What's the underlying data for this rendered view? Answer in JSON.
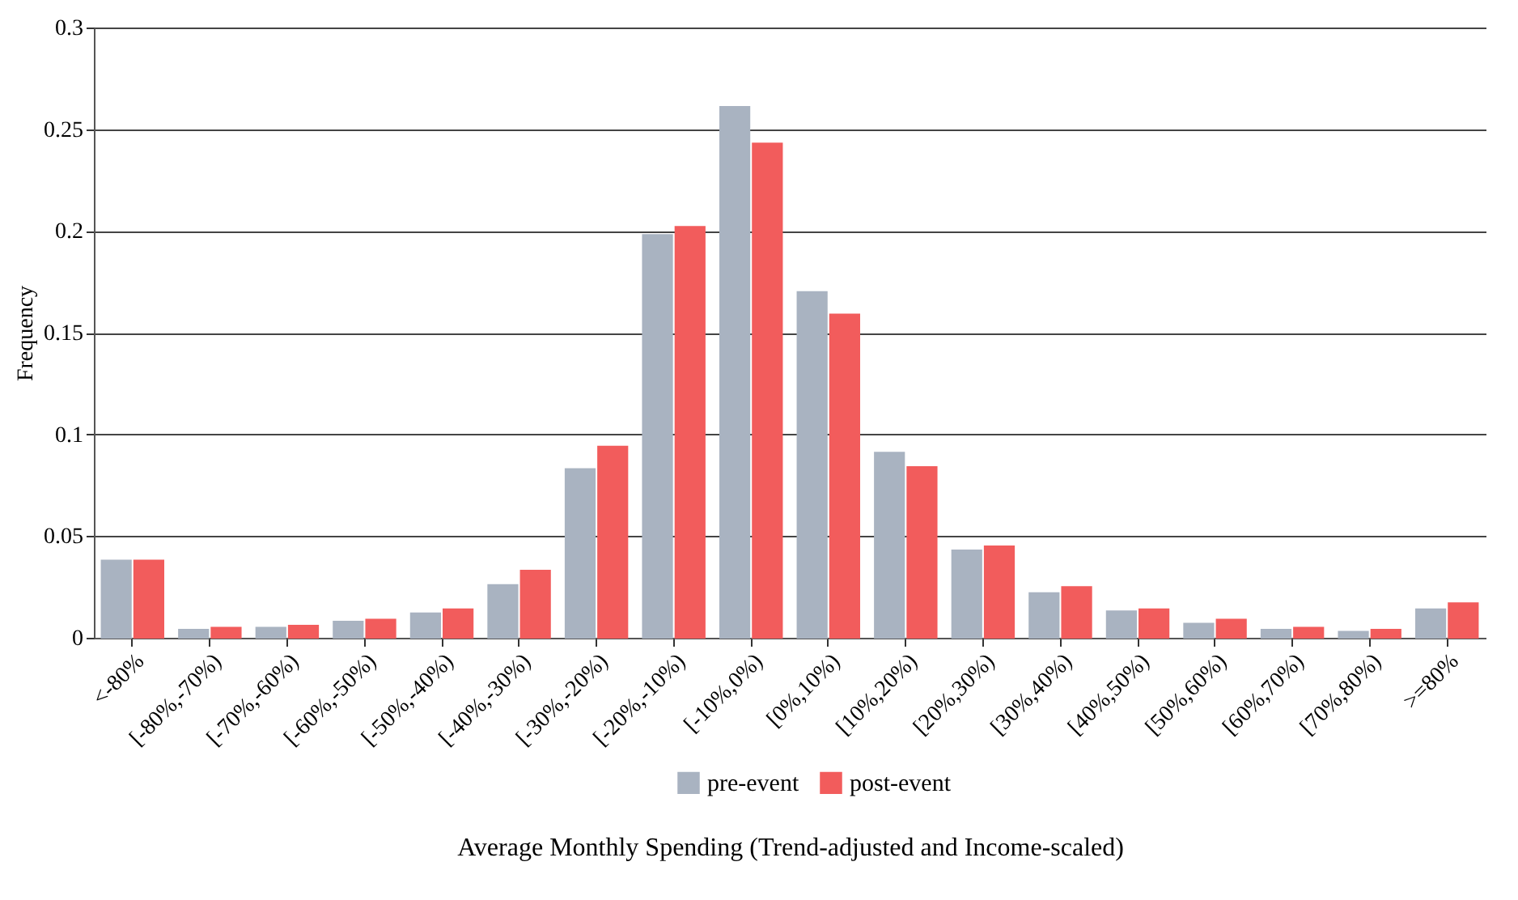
{
  "chart_data": {
    "type": "bar",
    "xlabel": "Average Monthly Spending (Trend-adjusted and Income-scaled)",
    "ylabel": "Frequency",
    "categories": [
      "<-80%",
      "[-80%,-70%)",
      "[-70%,-60%)",
      "[-60%,-50%)",
      "[-50%,-40%)",
      "[-40%,-30%)",
      "[-30%,-20%)",
      "[-20%,-10%)",
      "[-10%,0%)",
      "[0%,10%)",
      "[10%,20%)",
      "[20%,30%)",
      "[30%,40%)",
      "[40%,50%)",
      "[50%,60%)",
      "[60%,70%)",
      "[70%,80%)",
      ">=80%"
    ],
    "series": [
      {
        "name": "pre-event",
        "color": "#a9b3c1",
        "values": [
          0.038,
          0.004,
          0.005,
          0.008,
          0.012,
          0.026,
          0.083,
          0.198,
          0.261,
          0.17,
          0.091,
          0.043,
          0.022,
          0.013,
          0.007,
          0.004,
          0.003,
          0.014
        ]
      },
      {
        "name": "post-event",
        "color": "#f25c5c",
        "values": [
          0.038,
          0.005,
          0.006,
          0.009,
          0.014,
          0.033,
          0.094,
          0.202,
          0.243,
          0.159,
          0.084,
          0.045,
          0.025,
          0.014,
          0.009,
          0.005,
          0.004,
          0.017
        ]
      }
    ],
    "ylim": [
      0,
      0.3
    ],
    "yticks": [
      0,
      0.05,
      0.1,
      0.15,
      0.2,
      0.25,
      0.3
    ],
    "grid": "y",
    "legend": "bottom"
  }
}
